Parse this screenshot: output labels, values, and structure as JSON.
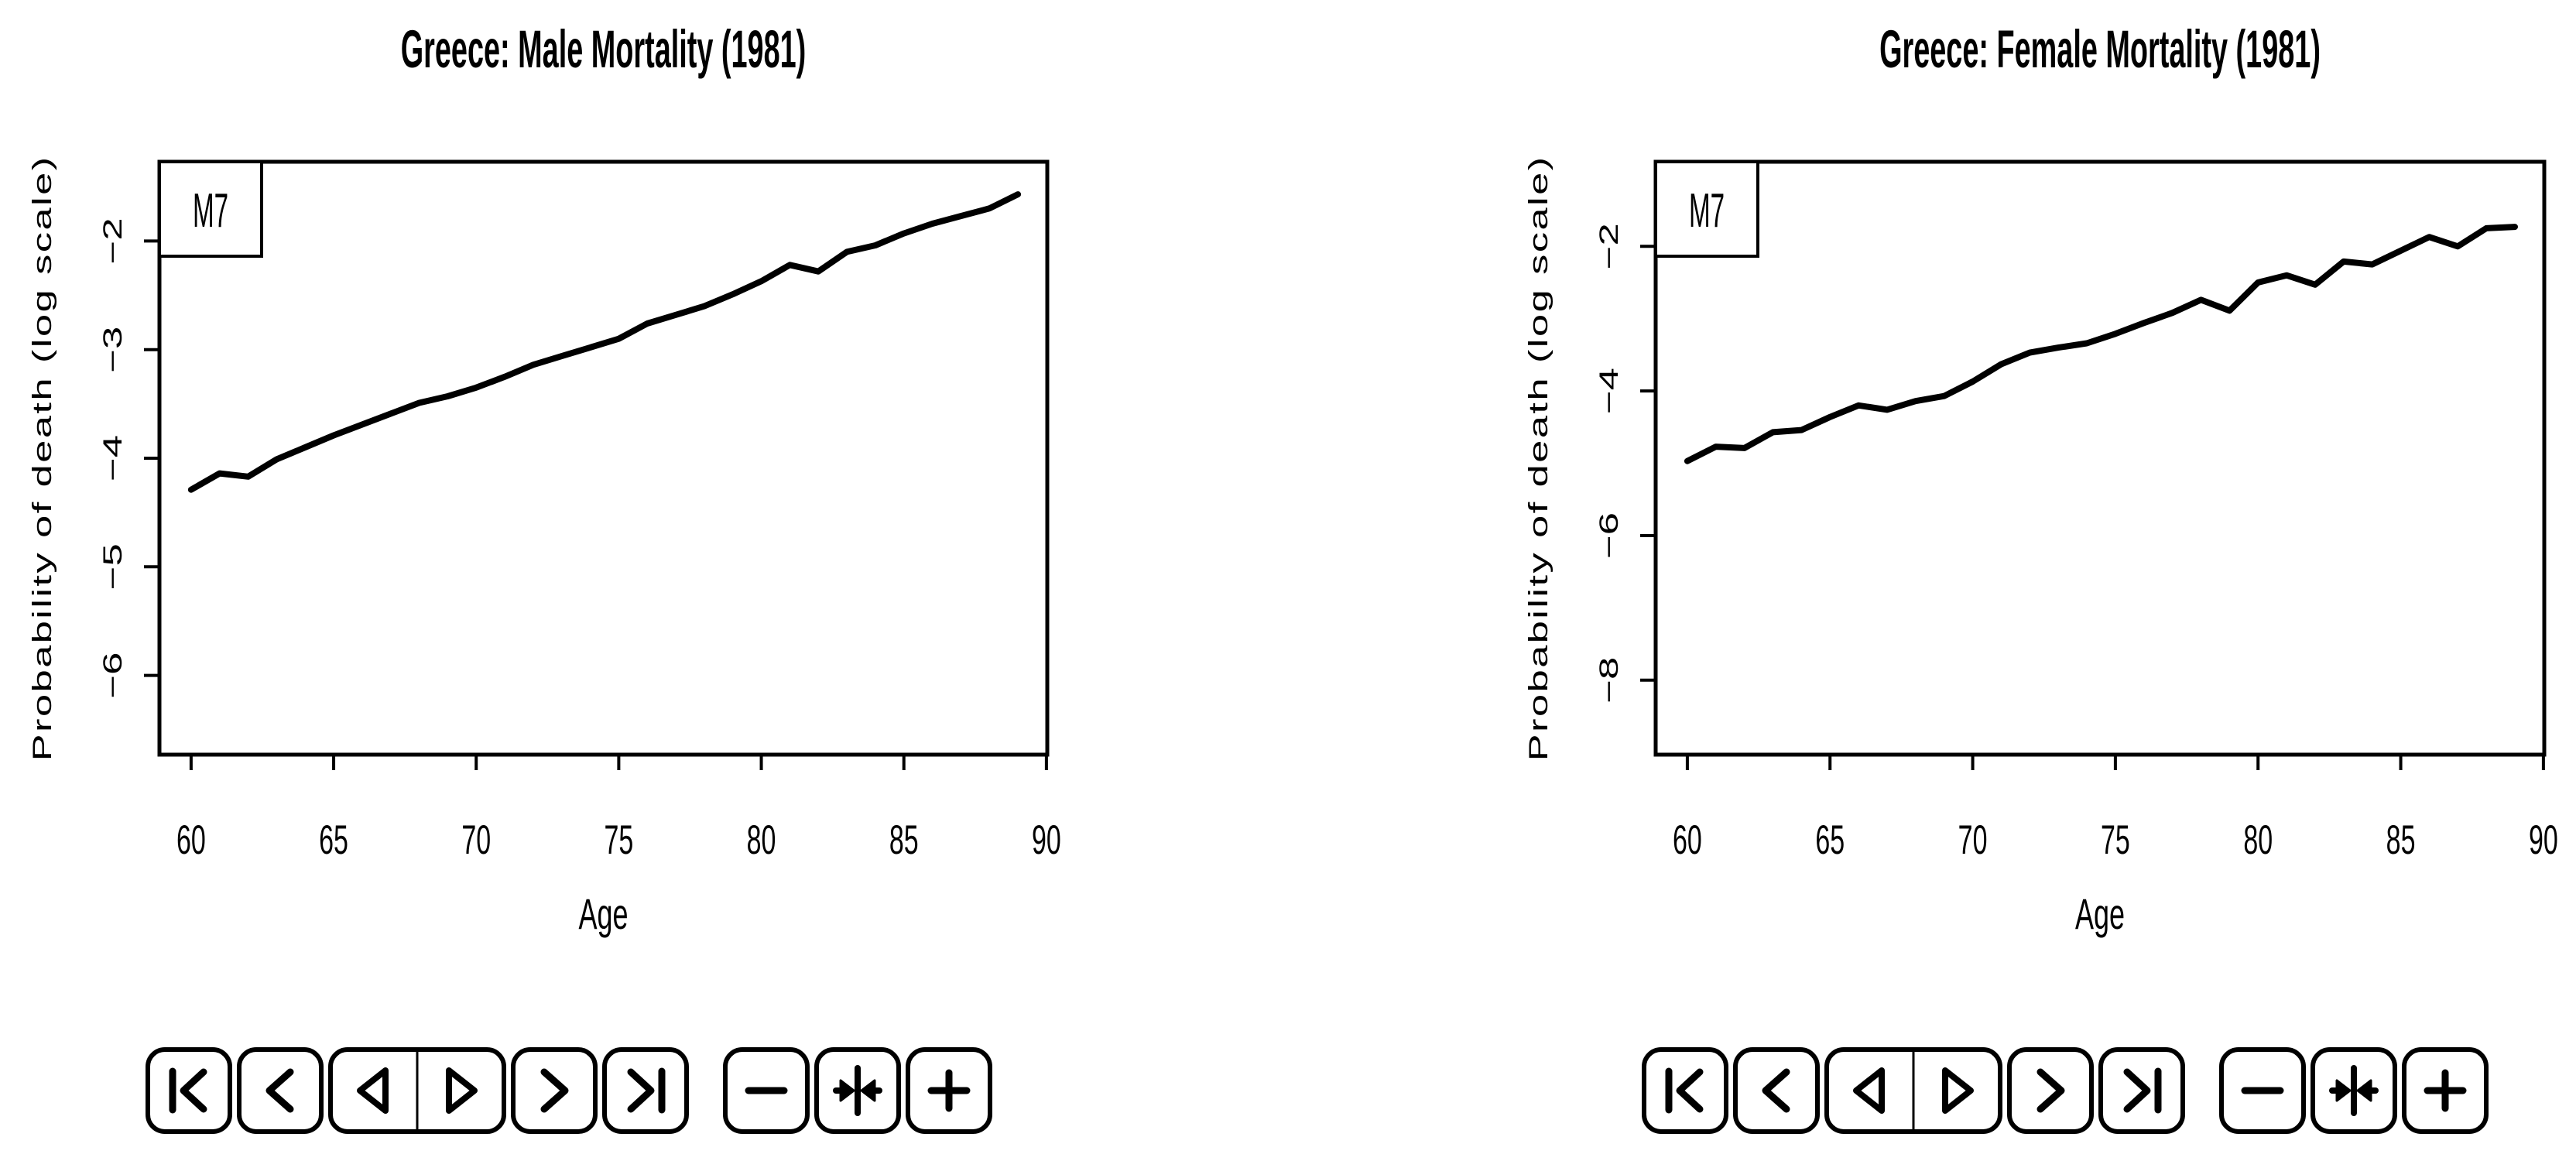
{
  "figure": {
    "background_color": "#ffffff",
    "foreground_color": "#000000"
  },
  "toolbar": {
    "buttons": [
      {
        "name": "go-first",
        "icon": "skip-start"
      },
      {
        "name": "step-backward",
        "icon": "chevron-left"
      },
      {
        "name": "play-backward",
        "icon": "triangle-left",
        "group": "pair"
      },
      {
        "name": "play-forward",
        "icon": "triangle-right",
        "group": "pair"
      },
      {
        "name": "step-forward",
        "icon": "chevron-right"
      },
      {
        "name": "go-last",
        "icon": "skip-end"
      },
      {
        "name": "zoom-out",
        "icon": "minus",
        "gap_before": true
      },
      {
        "name": "fit-view",
        "icon": "collapse"
      },
      {
        "name": "zoom-in",
        "icon": "plus"
      }
    ]
  },
  "chart_data": [
    {
      "type": "line",
      "title": "Greece: Male Mortality (1981)",
      "xlabel": "Age",
      "ylabel": "Probability of death (log scale)",
      "legend_label": "M7",
      "legend_position": "top-left",
      "grid": false,
      "xlim": [
        58.89,
        90.03
      ],
      "ylim": [
        -6.73,
        -1.27
      ],
      "xticks": [
        60,
        65,
        70,
        75,
        80,
        85,
        90
      ],
      "yticks": [
        -2,
        -3,
        -4,
        -5,
        -6
      ],
      "series": [
        {
          "name": "M7",
          "x": [
            60,
            61,
            62,
            63,
            64,
            65,
            66,
            67,
            68,
            69,
            70,
            71,
            72,
            73,
            74,
            75,
            76,
            77,
            78,
            79,
            80,
            81,
            82,
            83,
            84,
            85,
            86,
            87,
            88,
            89
          ],
          "y": [
            -4.29,
            -4.14,
            -4.17,
            -4.01,
            -3.9,
            -3.79,
            -3.69,
            -3.59,
            -3.49,
            -3.43,
            -3.35,
            -3.25,
            -3.14,
            -3.06,
            -2.98,
            -2.9,
            -2.76,
            -2.68,
            -2.6,
            -2.49,
            -2.37,
            -2.22,
            -2.28,
            -2.1,
            -2.04,
            -1.93,
            -1.84,
            -1.77,
            -1.7,
            -1.57
          ]
        }
      ]
    },
    {
      "type": "line",
      "title": "Greece: Female Mortality (1981)",
      "xlabel": "Age",
      "ylabel": "Probability of death (log scale)",
      "legend_label": "M7",
      "legend_position": "top-left",
      "grid": false,
      "xlim": [
        58.89,
        90.03
      ],
      "ylim": [
        -9.03,
        -0.83
      ],
      "xticks": [
        60,
        65,
        70,
        75,
        80,
        85,
        90
      ],
      "yticks": [
        -2,
        -4,
        -6,
        -8
      ],
      "series": [
        {
          "name": "M7",
          "x": [
            60,
            61,
            62,
            63,
            64,
            65,
            66,
            67,
            68,
            69,
            70,
            71,
            72,
            73,
            74,
            75,
            76,
            77,
            78,
            79,
            80,
            81,
            82,
            83,
            84,
            85,
            86,
            87,
            88,
            89
          ],
          "y": [
            -4.97,
            -4.77,
            -4.79,
            -4.57,
            -4.54,
            -4.36,
            -4.2,
            -4.26,
            -4.14,
            -4.07,
            -3.87,
            -3.63,
            -3.47,
            -3.4,
            -3.34,
            -3.21,
            -3.06,
            -2.92,
            -2.74,
            -2.89,
            -2.5,
            -2.4,
            -2.53,
            -2.21,
            -2.25,
            -2.06,
            -1.87,
            -2.0,
            -1.75,
            -1.73
          ]
        }
      ]
    }
  ]
}
